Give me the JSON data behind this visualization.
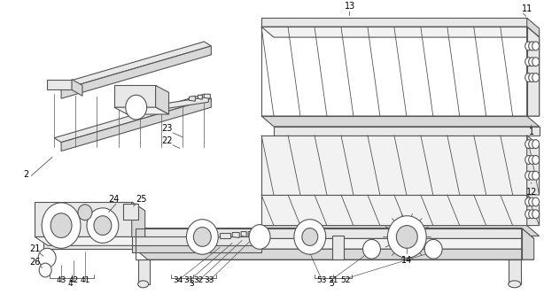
{
  "bg_color": "#ffffff",
  "line_color": "#555555",
  "figsize": [
    6.14,
    3.41
  ],
  "dpi": 100,
  "lw": 0.8
}
